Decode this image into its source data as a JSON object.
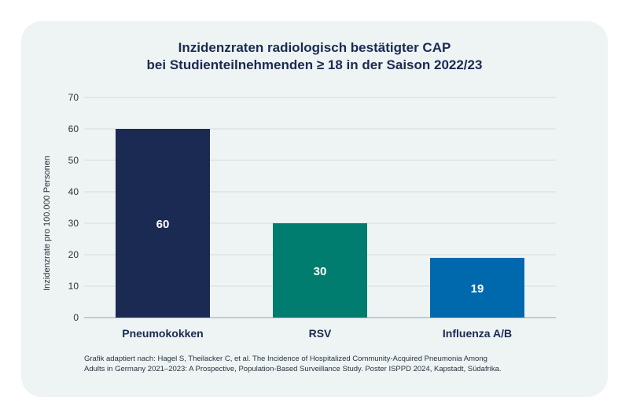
{
  "chart_data": {
    "type": "bar",
    "title_lines": [
      "Inzidenzraten radiologisch bestätigter CAP",
      "bei Studienteilnehmenden ≥ 18 in der Saison 2022/23"
    ],
    "ylabel": "Inzidenzrate pro 100.000 Personen",
    "xlabel": "",
    "categories": [
      "Pneumokokken",
      "RSV",
      "Influenza A/B"
    ],
    "values": [
      60,
      30,
      19
    ],
    "data_labels": [
      "60",
      "30",
      "19"
    ],
    "colors": [
      "#1b2a52",
      "#007d6e",
      "#0068ad"
    ],
    "ylim": [
      0,
      70
    ],
    "yticks": [
      0,
      10,
      20,
      30,
      40,
      50,
      60,
      70
    ],
    "grid": true,
    "legend": "none"
  },
  "source_lines": [
    "Grafik adaptiert nach: Hagel S, Theilacker C, et al. The Incidence of Hospitalized Community-Acquired Pneumonia Among",
    "Adults in Germany 2021–2023: A Prospective, Population-Based Surveillance Study. Poster ISPPD 2024, Kapstadt, Südafrika."
  ]
}
